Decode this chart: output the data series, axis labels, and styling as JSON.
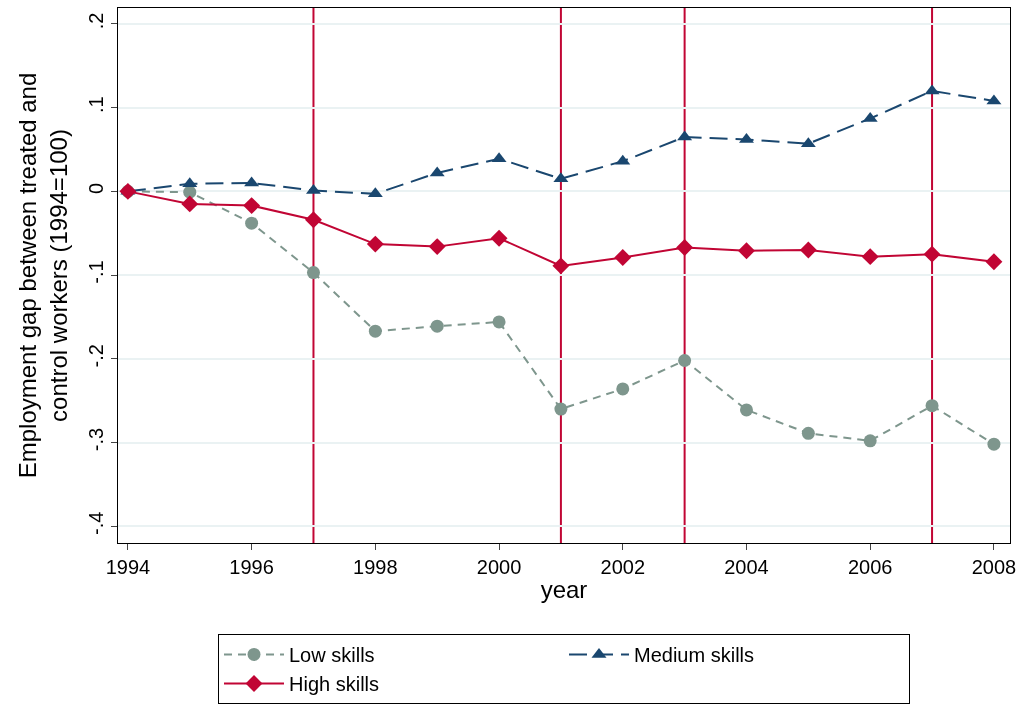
{
  "chart_data": {
    "type": "line",
    "xlabel": "year",
    "ylabel": "Employment gap between treated and\ncontrol workers (1994=100)",
    "x": [
      1994,
      1995,
      1996,
      1997,
      1998,
      1999,
      2000,
      2001,
      2002,
      2003,
      2004,
      2005,
      2006,
      2007,
      2008
    ],
    "series": [
      {
        "name": "Low skills",
        "color": "#7e968d",
        "marker": "circle",
        "line_style": "dashed",
        "values": [
          0,
          -0.001,
          -0.038,
          -0.097,
          -0.167,
          -0.161,
          -0.156,
          -0.26,
          -0.236,
          -0.202,
          -0.261,
          -0.289,
          -0.298,
          -0.256,
          -0.302
        ]
      },
      {
        "name": "Medium skills",
        "color": "#1a476f",
        "marker": "triangle",
        "line_style": "dashed",
        "values": [
          0,
          0.009,
          0.01,
          0.001,
          -0.003,
          0.022,
          0.039,
          0.015,
          0.036,
          0.065,
          0.062,
          0.057,
          0.087,
          0.12,
          0.108
        ]
      },
      {
        "name": "High skills",
        "color": "#c10534",
        "marker": "diamond",
        "line_style": "solid",
        "values": [
          0,
          -0.015,
          -0.017,
          -0.034,
          -0.063,
          -0.066,
          -0.056,
          -0.089,
          -0.079,
          -0.067,
          -0.071,
          -0.07,
          -0.078,
          -0.075,
          -0.084
        ]
      }
    ],
    "xlim": [
      1993.84,
      2008.26
    ],
    "xticks": [
      1994,
      1996,
      1998,
      2000,
      2002,
      2004,
      2006,
      2008
    ],
    "ylim": [
      -0.42,
      0.219
    ],
    "yticks": [
      {
        "value": -0.4,
        "label": "-.4"
      },
      {
        "value": -0.3,
        "label": "-.3"
      },
      {
        "value": -0.2,
        "label": "-.2"
      },
      {
        "value": -0.1,
        "label": "-.1"
      },
      0,
      {
        "value": 0.1,
        "label": ".1"
      },
      {
        "value": 0.2,
        "label": ".2"
      }
    ],
    "ref_lines": [
      {
        "axis": "x",
        "value": 1997,
        "color": "#c10534"
      },
      {
        "axis": "x",
        "value": 2001,
        "color": "#c10534"
      },
      {
        "axis": "x",
        "value": 2003,
        "color": "#c10534"
      },
      {
        "axis": "x",
        "value": 2007,
        "color": "#c10534"
      }
    ],
    "grid": "y",
    "legend": "bottom"
  }
}
